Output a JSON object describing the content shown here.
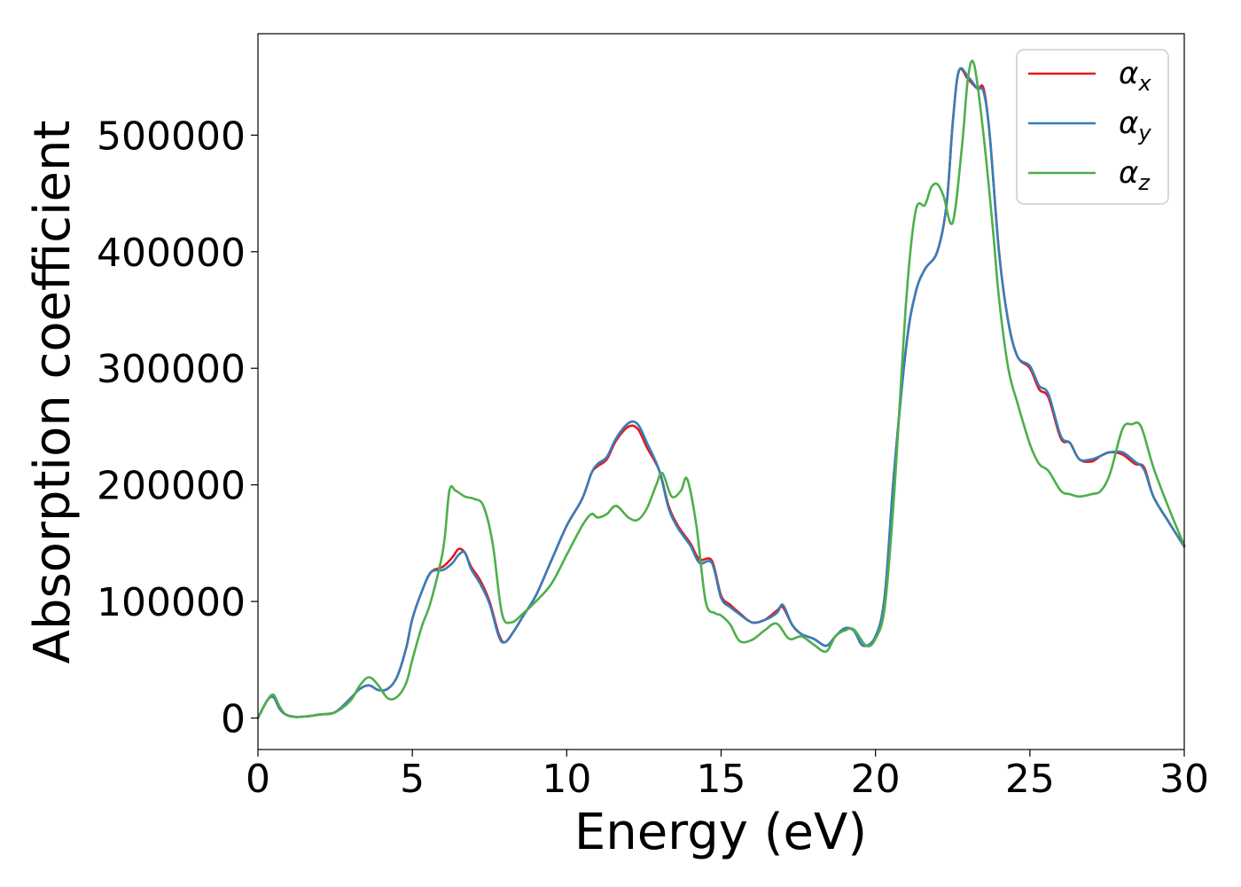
{
  "chart_data": {
    "type": "line",
    "title": "",
    "xlabel": "Energy (eV)",
    "ylabel": "Absorption coefficient",
    "xlim": [
      0,
      30
    ],
    "ylim": [
      -27000,
      587000
    ],
    "xticks": [
      0,
      5,
      10,
      15,
      20,
      25,
      30
    ],
    "xtick_labels": [
      "0",
      "5",
      "10",
      "15",
      "20",
      "25",
      "30"
    ],
    "yticks": [
      0,
      100000,
      200000,
      300000,
      400000,
      500000
    ],
    "ytick_labels": [
      "0",
      "100000",
      "200000",
      "300000",
      "400000",
      "500000"
    ],
    "grid": false,
    "legend_position": "top-right",
    "series": [
      {
        "name": "αx",
        "legend_base": "α",
        "legend_sub": "x",
        "color": "#e41a1c",
        "x": [
          0,
          0.3,
          0.5,
          0.7,
          0.9,
          1.2,
          1.6,
          2.0,
          2.5,
          3.0,
          3.3,
          3.6,
          3.9,
          4.2,
          4.5,
          4.8,
          5.0,
          5.3,
          5.6,
          6.0,
          6.3,
          6.5,
          6.7,
          6.9,
          7.2,
          7.5,
          7.8,
          8.0,
          8.3,
          8.6,
          9.0,
          9.5,
          10.0,
          10.5,
          10.8,
          11.0,
          11.3,
          11.6,
          12.0,
          12.3,
          12.6,
          13.0,
          13.3,
          13.6,
          14.0,
          14.3,
          14.7,
          15.0,
          15.3,
          15.6,
          16.0,
          16.4,
          16.8,
          17.0,
          17.3,
          17.6,
          18.0,
          18.4,
          18.7,
          19.0,
          19.3,
          19.6,
          20.0,
          20.3,
          20.6,
          21.0,
          21.3,
          21.6,
          22.0,
          22.3,
          22.5,
          22.7,
          23.0,
          23.3,
          23.5,
          23.7,
          24.0,
          24.3,
          24.6,
          25.0,
          25.3,
          25.6,
          26.0,
          26.3,
          26.6,
          27.0,
          27.3,
          27.6,
          28.0,
          28.4,
          28.7,
          29.0,
          29.5,
          30.0
        ],
        "y": [
          0,
          15000,
          18000,
          8000,
          3000,
          1000,
          1500,
          3000,
          5000,
          17000,
          25000,
          28000,
          24000,
          25000,
          35000,
          60000,
          85000,
          108000,
          125000,
          130000,
          138000,
          145000,
          142000,
          130000,
          118000,
          100000,
          72000,
          65000,
          75000,
          88000,
          105000,
          135000,
          165000,
          188000,
          210000,
          216000,
          222000,
          238000,
          250000,
          248000,
          232000,
          212000,
          182000,
          165000,
          150000,
          136000,
          135000,
          105000,
          97000,
          90000,
          82000,
          84000,
          92000,
          95000,
          80000,
          72000,
          68000,
          62000,
          70000,
          77000,
          75000,
          62000,
          70000,
          105000,
          210000,
          320000,
          365000,
          385000,
          400000,
          440000,
          510000,
          555000,
          548000,
          540000,
          540000,
          500000,
          400000,
          340000,
          310000,
          300000,
          282000,
          275000,
          240000,
          236000,
          222000,
          220000,
          225000,
          228000,
          226000,
          218000,
          215000,
          190000,
          168000,
          147000
        ]
      },
      {
        "name": "αy",
        "legend_base": "α",
        "legend_sub": "y",
        "color": "#377eb8",
        "x": [
          0,
          0.3,
          0.5,
          0.7,
          0.9,
          1.2,
          1.6,
          2.0,
          2.5,
          3.0,
          3.3,
          3.6,
          3.9,
          4.2,
          4.5,
          4.8,
          5.0,
          5.3,
          5.6,
          6.0,
          6.3,
          6.5,
          6.7,
          6.9,
          7.2,
          7.5,
          7.8,
          8.0,
          8.3,
          8.6,
          9.0,
          9.5,
          10.0,
          10.5,
          10.8,
          11.0,
          11.3,
          11.6,
          12.0,
          12.3,
          12.6,
          13.0,
          13.3,
          13.6,
          14.0,
          14.3,
          14.7,
          15.0,
          15.3,
          15.6,
          16.0,
          16.4,
          16.8,
          17.0,
          17.3,
          17.6,
          18.0,
          18.4,
          18.7,
          19.0,
          19.3,
          19.6,
          20.0,
          20.3,
          20.6,
          21.0,
          21.3,
          21.6,
          22.0,
          22.3,
          22.5,
          22.7,
          23.0,
          23.3,
          23.5,
          23.7,
          24.0,
          24.3,
          24.6,
          25.0,
          25.3,
          25.6,
          26.0,
          26.3,
          26.6,
          27.0,
          27.3,
          27.6,
          28.0,
          28.4,
          28.7,
          29.0,
          29.5,
          30.0
        ],
        "y": [
          0,
          15000,
          18000,
          8000,
          3000,
          1000,
          1500,
          3000,
          5000,
          17000,
          25000,
          28000,
          24000,
          25000,
          35000,
          60000,
          85000,
          108000,
          125000,
          127000,
          133000,
          140000,
          142000,
          128000,
          115000,
          98000,
          70000,
          65000,
          75000,
          88000,
          105000,
          135000,
          165000,
          188000,
          210000,
          218000,
          224000,
          240000,
          253000,
          252000,
          236000,
          212000,
          180000,
          163000,
          148000,
          133000,
          133000,
          103000,
          95000,
          89000,
          82000,
          84000,
          90000,
          97000,
          80000,
          72000,
          68000,
          62000,
          70000,
          77000,
          75000,
          62000,
          70000,
          105000,
          210000,
          320000,
          365000,
          385000,
          400000,
          440000,
          510000,
          555000,
          550000,
          540000,
          537000,
          500000,
          400000,
          340000,
          310000,
          302000,
          285000,
          278000,
          242000,
          236000,
          222000,
          222000,
          225000,
          228000,
          228000,
          220000,
          213000,
          190000,
          168000,
          147000
        ]
      },
      {
        "name": "αz",
        "legend_base": "α",
        "legend_sub": "z",
        "color": "#4daf4a",
        "x": [
          0,
          0.3,
          0.5,
          0.7,
          0.9,
          1.2,
          1.6,
          2.0,
          2.5,
          3.0,
          3.3,
          3.6,
          3.9,
          4.2,
          4.5,
          4.8,
          5.0,
          5.3,
          5.6,
          6.0,
          6.2,
          6.4,
          6.7,
          7.0,
          7.3,
          7.6,
          7.9,
          8.2,
          8.6,
          9.0,
          9.5,
          10.0,
          10.5,
          10.8,
          11.0,
          11.3,
          11.6,
          12.0,
          12.3,
          12.6,
          12.9,
          13.1,
          13.4,
          13.7,
          13.9,
          14.2,
          14.5,
          14.8,
          15.0,
          15.3,
          15.6,
          16.0,
          16.4,
          16.8,
          17.2,
          17.6,
          18.0,
          18.4,
          18.7,
          19.0,
          19.3,
          19.7,
          20.0,
          20.3,
          20.6,
          21.0,
          21.3,
          21.6,
          21.8,
          22.0,
          22.2,
          22.5,
          22.8,
          23.0,
          23.2,
          23.5,
          23.8,
          24.0,
          24.3,
          24.6,
          25.0,
          25.3,
          25.6,
          26.0,
          26.3,
          26.6,
          27.0,
          27.3,
          27.6,
          28.0,
          28.3,
          28.6,
          29.0,
          29.5,
          30.0
        ],
        "y": [
          0,
          15000,
          20000,
          10000,
          3000,
          1000,
          1500,
          3000,
          5000,
          15000,
          28000,
          35000,
          28000,
          17000,
          18000,
          30000,
          50000,
          78000,
          100000,
          145000,
          195000,
          195000,
          190000,
          188000,
          182000,
          150000,
          90000,
          82000,
          90000,
          100000,
          115000,
          140000,
          165000,
          175000,
          172000,
          175000,
          182000,
          172000,
          170000,
          180000,
          200000,
          210000,
          190000,
          195000,
          205000,
          165000,
          100000,
          90000,
          88000,
          80000,
          66000,
          67000,
          75000,
          81000,
          68000,
          70000,
          63000,
          57000,
          70000,
          75000,
          76000,
          62000,
          68000,
          95000,
          190000,
          360000,
          435000,
          440000,
          455000,
          458000,
          448000,
          425000,
          490000,
          550000,
          560000,
          500000,
          420000,
          360000,
          300000,
          270000,
          235000,
          218000,
          212000,
          195000,
          192000,
          190000,
          192000,
          195000,
          210000,
          248000,
          252000,
          250000,
          215000,
          180000,
          148000
        ]
      }
    ]
  }
}
